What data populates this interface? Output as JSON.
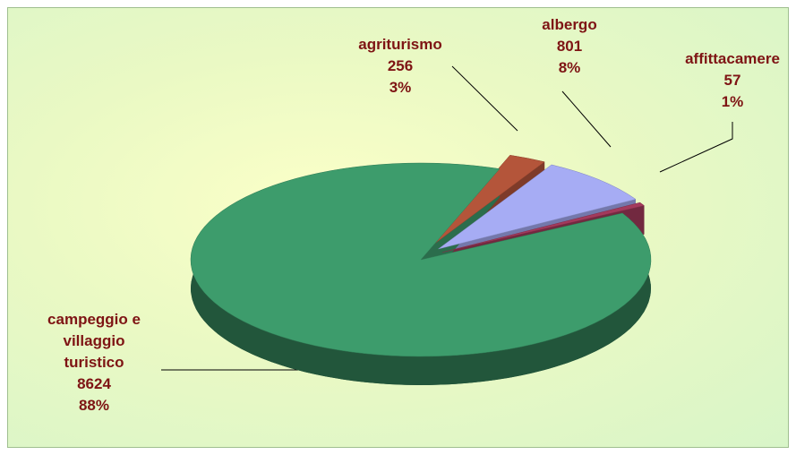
{
  "chart_data": {
    "type": "pie",
    "categories": [
      "agriturismo",
      "albergo",
      "affittacamere",
      "campeggio e\nvillaggio\nturistico"
    ],
    "values": [
      256,
      801,
      57,
      8624
    ],
    "percent_labels": [
      "3%",
      "8%",
      "1%",
      "88%"
    ],
    "colors": [
      "#b4553a",
      "#a6acf4",
      "#a33a5c",
      "#3d9c6c"
    ],
    "exploded": [
      true,
      true,
      true,
      false
    ]
  }
}
